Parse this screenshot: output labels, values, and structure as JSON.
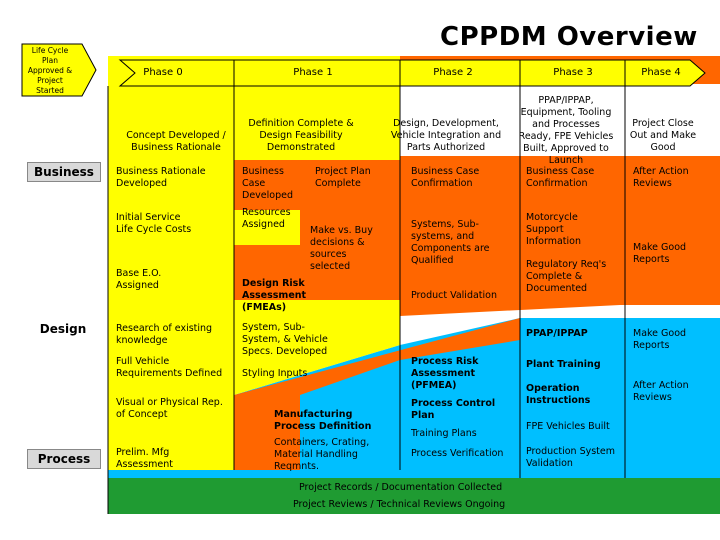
{
  "title": "CPPDM Overview",
  "start_text": "Life Cycle Plan Approved & Project Started",
  "colors": {
    "yellow": "#ffff00",
    "orange": "#ff6600",
    "blue": "#00bfff",
    "green": "#1f9b32",
    "black": "#000000"
  },
  "phases": [
    "Phase 0",
    "Phase 1",
    "Phase 2",
    "Phase 3",
    "Phase 4"
  ],
  "categories": [
    "Business",
    "Design",
    "Process"
  ],
  "milestones": {
    "p0": "Concept Developed / Business Rationale",
    "p1": "Definition Complete & Design Feasibility Demonstrated",
    "p2": "Design, Development, Vehicle Integration and Parts Authorized",
    "p3": "PPAP/IPPAP, Equipment, Tooling and Processes Ready, FPE Vehicles Built, Approved to Launch",
    "p4": "Project Close Out and Make Good"
  },
  "items": {
    "p0_business_rationale": "Business Rationale Developed",
    "p0_life_cycle": "Initial Service Life Cycle Costs",
    "p0_base_eo": "Base E.O. Assigned",
    "p0_research": "Research of existing knowledge",
    "p0_full_vehicle": "Full Vehicle Requirements Defined",
    "p0_visual": "Visual or Physical Rep. of Concept",
    "p0_prelim_mfg": "Prelim. Mfg Assessment",
    "p1_business_case": "Business Case Developed",
    "p1_project_plan": "Project Plan Complete",
    "p1_resources": "Resources Assigned",
    "p1_make_vs_buy": "Make vs. Buy decisions & sources selected",
    "p1_dfmea": "Design Risk Assessment (FMEAs)",
    "p1_system_specs": "System, Sub-System, & Vehicle Specs. Developed",
    "p1_styling": "Styling Inputs",
    "p1_mfg_process": "Manufacturing Process Definition",
    "p1_containers": "Containers, Crating, Material Handling Reqmnts.",
    "p2_bc_confirm": "Business Case Confirmation",
    "p2_systems": "Systems, Sub-systems, and Components are Qualified",
    "p2_product_validation": "Product Validation",
    "p2_pfmea": "Process Risk Assessment (PFMEA)",
    "p2_control_plan": "Process Control Plan",
    "p2_training_plans": "Training Plans",
    "p2_process_verification": "Process Verification",
    "p3_bc_confirm": "Business Case Confirmation",
    "p3_motorcycle": "Motorcycle Support Information",
    "p3_regulatory": "Regulatory Req's Complete & Documented",
    "p3_ppap": "PPAP/IPPAP",
    "p3_plant_training": "Plant Training",
    "p3_operation": "Operation Instructions",
    "p3_fpe": "FPE Vehicles Built",
    "p3_production": "Production System Validation",
    "p4_after_action_1": "After Action Reviews",
    "p4_make_good_1": "Make Good Reports",
    "p4_make_good_2": "Make Good Reports",
    "p4_after_action_2": "After Action Reviews"
  },
  "bottom": {
    "records": "Project Records / Documentation Collected",
    "reviews": "Project Reviews / Technical Reviews Ongoing"
  }
}
